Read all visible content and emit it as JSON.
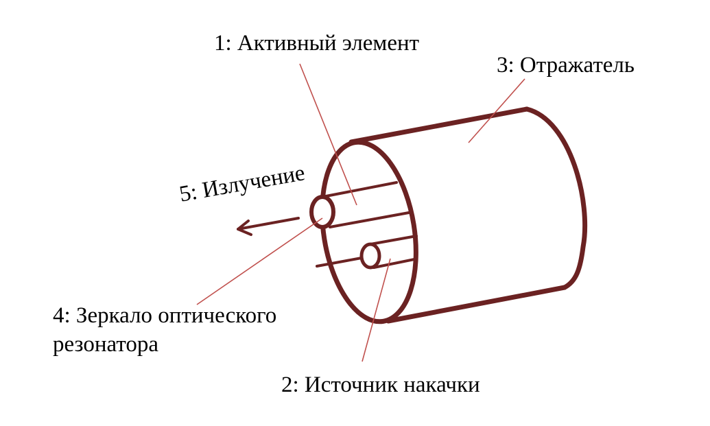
{
  "labels": {
    "active_element": "1: Активный элемент",
    "pump_source": "2: Источник накачки",
    "reflector": "3: Отражатель",
    "mirror_line1": "4: Зеркало оптического",
    "mirror_line2": "резонатора",
    "radiation": "5: Излучение"
  },
  "colors": {
    "body": "#6b2222",
    "leader": "#c0504d",
    "text": "#000000",
    "background": "#ffffff"
  }
}
